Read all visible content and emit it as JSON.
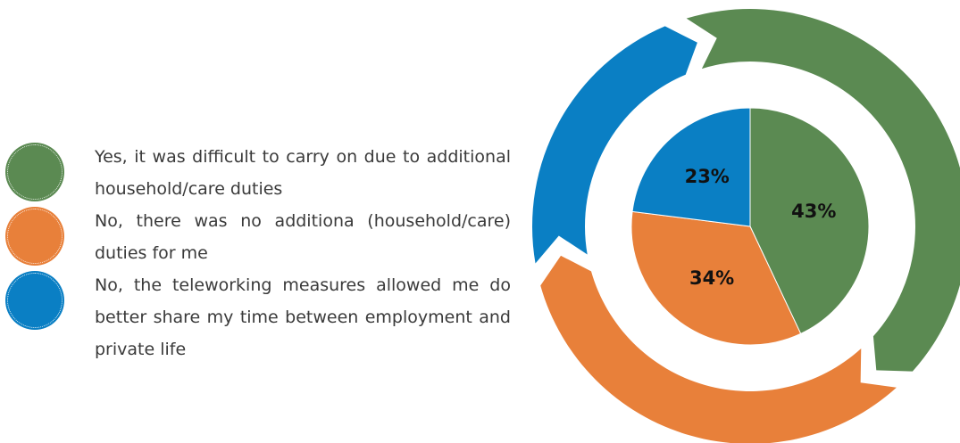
{
  "chart_data": {
    "type": "pie",
    "categories": [
      "Yes, it was difficult to carry on due to additional household/care duties",
      "No, there was no additiona (household/care) duties for me",
      "No, the teleworking measures allowed me do better share my time between employment and private life"
    ],
    "values": [
      43,
      34,
      23
    ],
    "value_labels": [
      "43%",
      "34%",
      "23%"
    ],
    "colors": [
      "#5b8a52",
      "#e8803a",
      "#0a7fc4"
    ]
  }
}
